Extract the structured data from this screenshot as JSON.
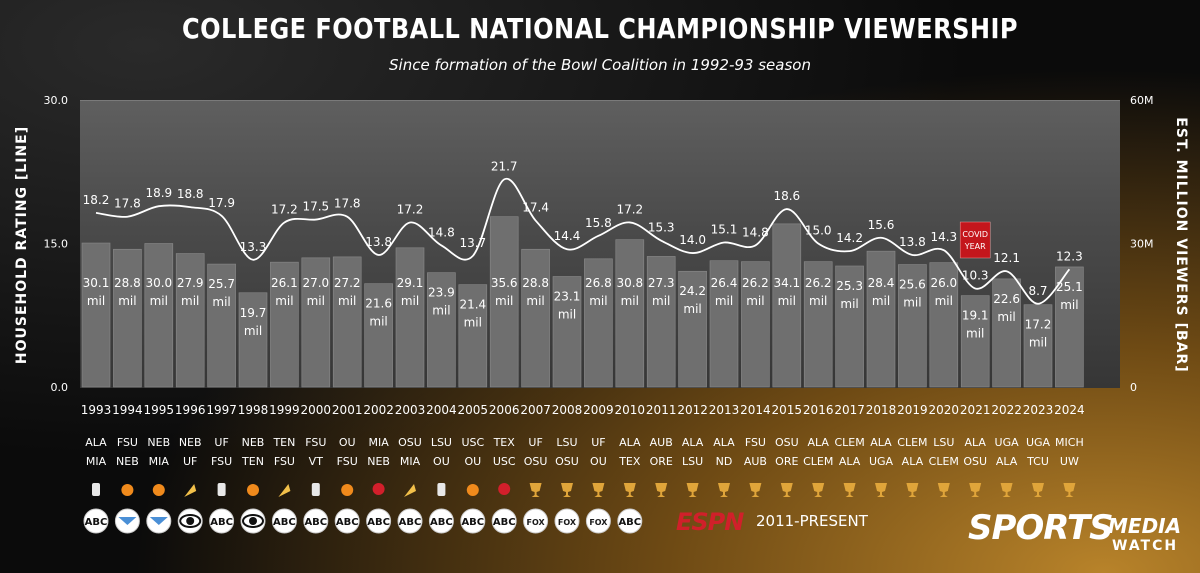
{
  "title": "COLLEGE FOOTBALL NATIONAL CHAMPIONSHIP VIEWERSHIP",
  "subtitle": "Since formation of the Bowl Coalition in 1992-93 season",
  "left_axis_title": "HOUSEHOLD RATING [LINE]",
  "right_axis_title": "EST. MILLION VIEWERS [BAR]",
  "espn_logo_text": "ESPN",
  "espn_note": "2011-PRESENT",
  "brand": {
    "part1": "SPORTS",
    "part2": "MEDIA",
    "part3": "WATCH"
  },
  "covid_label": [
    "COVID",
    "YEAR"
  ],
  "colors": {
    "bar": "#6f6f6f",
    "line": "#ffffff",
    "covid": "#c4161c",
    "espn": "#d0202a"
  },
  "chart_data": {
    "type": "bar",
    "left_axis": {
      "ticks": [
        "30.0",
        "15.0",
        "0.0"
      ],
      "ylim": [
        0,
        30
      ]
    },
    "right_axis": {
      "ticks": [
        "60M",
        "30M",
        "0"
      ],
      "ylim": [
        0,
        60
      ]
    },
    "x": [
      "1993",
      "1994",
      "1995",
      "1996",
      "1997",
      "1998",
      "1999",
      "2000",
      "2001",
      "2002",
      "2003",
      "2004",
      "2005",
      "2006",
      "2007",
      "2008",
      "2009",
      "2010",
      "2011",
      "2012",
      "2013",
      "2014",
      "2015",
      "2016",
      "2017",
      "2018",
      "2019",
      "2020",
      "2021",
      "2022",
      "2023",
      "2024"
    ],
    "series": [
      {
        "type": "line",
        "axis": "left",
        "values": [
          18.2,
          17.8,
          18.9,
          18.8,
          17.9,
          13.3,
          17.2,
          17.5,
          17.8,
          13.8,
          17.2,
          14.8,
          13.7,
          21.7,
          17.4,
          14.4,
          15.8,
          17.2,
          15.3,
          14.0,
          15.1,
          14.8,
          18.6,
          15.0,
          14.2,
          15.6,
          13.8,
          14.3,
          10.3,
          12.1,
          8.7,
          12.3
        ]
      },
      {
        "type": "bar",
        "axis": "right",
        "values": [
          30.1,
          28.8,
          30.0,
          27.9,
          25.7,
          19.7,
          26.1,
          27.0,
          27.2,
          21.6,
          29.1,
          23.9,
          21.4,
          35.6,
          28.8,
          23.1,
          26.8,
          30.8,
          27.3,
          24.2,
          26.4,
          26.2,
          34.1,
          26.2,
          25.3,
          28.4,
          25.6,
          26.0,
          19.1,
          22.6,
          17.2,
          25.1
        ],
        "unit": "mil"
      }
    ],
    "matchups": [
      [
        "ALA",
        "MIA"
      ],
      [
        "FSU",
        "NEB"
      ],
      [
        "NEB",
        "MIA"
      ],
      [
        "NEB",
        "UF"
      ],
      [
        "UF",
        "FSU"
      ],
      [
        "NEB",
        "TEN"
      ],
      [
        "TEN",
        "FSU"
      ],
      [
        "FSU",
        "VT"
      ],
      [
        "OU",
        "FSU"
      ],
      [
        "MIA",
        "NEB"
      ],
      [
        "OSU",
        "MIA"
      ],
      [
        "LSU",
        "OU"
      ],
      [
        "USC",
        "OU"
      ],
      [
        "TEX",
        "USC"
      ],
      [
        "UF",
        "OSU"
      ],
      [
        "LSU",
        "OSU"
      ],
      [
        "UF",
        "OU"
      ],
      [
        "ALA",
        "TEX"
      ],
      [
        "AUB",
        "ORE"
      ],
      [
        "ALA",
        "LSU"
      ],
      [
        "ALA",
        "ND"
      ],
      [
        "FSU",
        "AUB"
      ],
      [
        "OSU",
        "ORE"
      ],
      [
        "ALA",
        "CLEM"
      ],
      [
        "CLEM",
        "ALA"
      ],
      [
        "ALA",
        "UGA"
      ],
      [
        "CLEM",
        "ALA"
      ],
      [
        "LSU",
        "CLEM"
      ],
      [
        "ALA",
        "OSU"
      ],
      [
        "UGA",
        "ALA"
      ],
      [
        "UGA",
        "TCU"
      ],
      [
        "MICH",
        "UW"
      ]
    ],
    "bowls": [
      "sugar",
      "orange",
      "orange",
      "fiesta",
      "sugar",
      "orange",
      "fiesta",
      "sugar",
      "orange",
      "rose",
      "fiesta",
      "sugar",
      "orange",
      "rose",
      "trophy",
      "trophy",
      "trophy",
      "trophy",
      "trophy",
      "trophy",
      "trophy",
      "trophy",
      "trophy",
      "trophy",
      "trophy",
      "trophy",
      "trophy",
      "trophy",
      "trophy",
      "trophy",
      "trophy",
      "trophy"
    ],
    "networks": [
      "abc",
      "nbc",
      "nbc",
      "cbs",
      "abc",
      "cbs",
      "abc",
      "abc",
      "abc",
      "abc",
      "abc",
      "abc",
      "abc",
      "abc",
      "fox",
      "fox",
      "fox",
      "abc"
    ],
    "annotations": [
      {
        "x": "2021",
        "text": "COVID YEAR"
      }
    ],
    "grid": false,
    "legend": "none"
  }
}
